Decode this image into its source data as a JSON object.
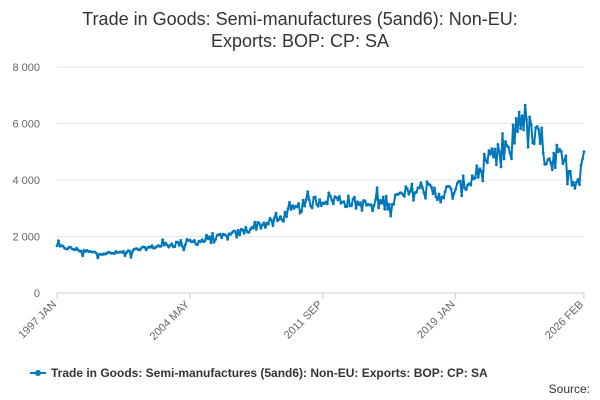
{
  "chart_data": {
    "type": "line",
    "title_lines": [
      "Trade in Goods: Semi-manufactures (5and6): Non-EU:",
      "Exports: BOP: CP: SA"
    ],
    "xlabel": "",
    "ylabel": "",
    "x_range": [
      "1997 JAN",
      "2026 FEB"
    ],
    "x_ticks": [
      {
        "label": "1997 JAN",
        "year": 1997.0
      },
      {
        "label": "2004 MAY",
        "year": 2004.333
      },
      {
        "label": "2011 SEP",
        "year": 2011.667
      },
      {
        "label": "2019 JAN",
        "year": 2019.0
      },
      {
        "label": "2026 FEB",
        "year": 2026.083
      }
    ],
    "y_ticks": [
      0,
      2000,
      4000,
      6000,
      8000
    ],
    "y_tick_labels": [
      "0",
      "2 000",
      "4 000",
      "6 000",
      "8 000"
    ],
    "ylim": [
      0,
      8000
    ],
    "grid": true,
    "legend_position": "bottom",
    "series": [
      {
        "name": "Trade in Goods: Semi-manufactures (5and6): Non-EU: Exports: BOP: CP: SA",
        "color": "#0077bb",
        "anchors_year_value": [
          [
            1997.0,
            1650
          ],
          [
            1998.0,
            1550
          ],
          [
            1999.0,
            1430
          ],
          [
            2000.0,
            1400
          ],
          [
            2001.0,
            1480
          ],
          [
            2002.0,
            1600
          ],
          [
            2003.0,
            1700
          ],
          [
            2004.0,
            1770
          ],
          [
            2005.0,
            1850
          ],
          [
            2006.0,
            1950
          ],
          [
            2007.0,
            2100
          ],
          [
            2008.0,
            2400
          ],
          [
            2009.0,
            2500
          ],
          [
            2010.0,
            2900
          ],
          [
            2011.0,
            3200
          ],
          [
            2012.0,
            3350
          ],
          [
            2013.0,
            3250
          ],
          [
            2014.0,
            3100
          ],
          [
            2015.0,
            3200
          ],
          [
            2016.0,
            3400
          ],
          [
            2017.0,
            3700
          ],
          [
            2018.0,
            3500
          ],
          [
            2019.0,
            3600
          ],
          [
            2020.0,
            4100
          ],
          [
            2021.0,
            4600
          ],
          [
            2022.0,
            5000
          ],
          [
            2022.6,
            6500
          ],
          [
            2023.0,
            5700
          ],
          [
            2024.0,
            5000
          ],
          [
            2025.0,
            4500
          ],
          [
            2025.7,
            4000
          ],
          [
            2026.083,
            4950
          ]
        ]
      }
    ]
  },
  "legend": {
    "label": "Trade in Goods: Semi-manufactures (5and6): Non-EU: Exports: BOP: CP: SA"
  },
  "source": {
    "label": "Source:"
  }
}
